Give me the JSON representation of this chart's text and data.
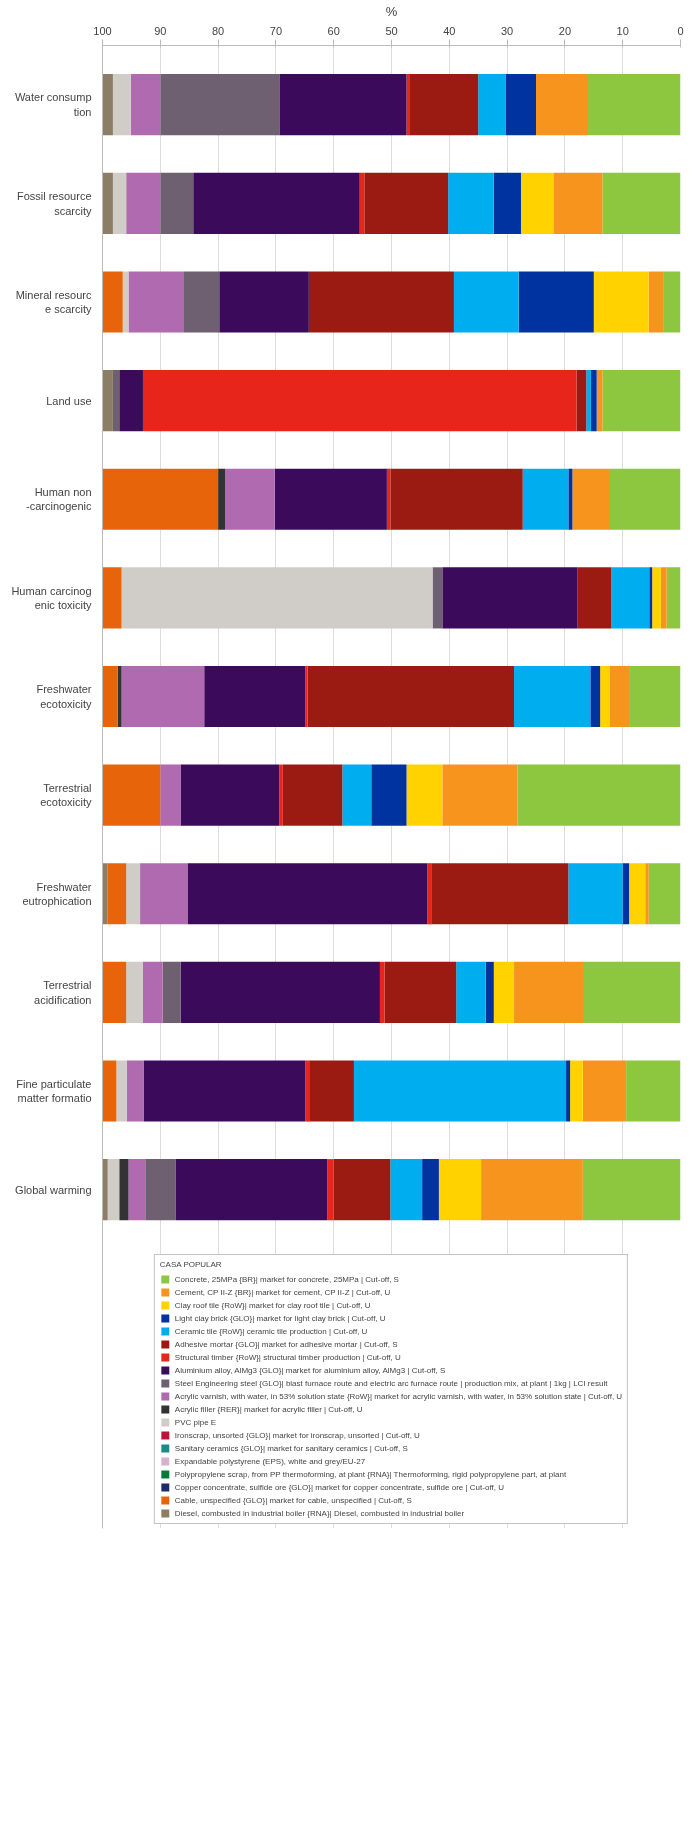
{
  "chart_data": {
    "type": "bar",
    "orientation": "horizontal",
    "stacked": true,
    "categories": [
      "Water consump\ntion",
      "Fossil resource\nscarcity",
      "Mineral resourc\ne scarcity",
      "Land use",
      "Human non\n-carcinogenic",
      "Human carcinog\nenic toxicity",
      "Freshwater\necotoxicity",
      "Terrestrial\necotoxicity",
      "Freshwater\neutrophication",
      "Terrestrial\nacidification",
      "Fine particulate\nmatter formatio",
      "Global warming"
    ],
    "xlabel": "%",
    "xlim": [
      100,
      0
    ],
    "xticks": [
      100,
      90,
      80,
      70,
      60,
      50,
      40,
      30,
      20,
      10,
      0
    ],
    "grid": "x",
    "legend": "bottom",
    "legend_title": "CASA POPULAR",
    "series": [
      {
        "name": "Concrete, 25MPa {BR}| market for concrete, 25MPa | Cut-off, S",
        "color": "#8dc63f",
        "values": [
          16,
          13.5,
          3,
          13.5,
          12.2,
          2.4,
          8.9,
          28.2,
          5.5,
          16.7,
          9.4,
          16.9
        ]
      },
      {
        "name": "Cement, CP II-Z {BR}| market for cement, CP II-Z | Cut-off, U",
        "color": "#f7941d",
        "values": [
          9,
          8.5,
          2.5,
          1,
          6.5,
          1,
          3.3,
          13,
          0.6,
          12.1,
          7.5,
          17.6
        ]
      },
      {
        "name": "Clay roof tile {RoW}| market for clay roof tile | Cut-off, U",
        "color": "#ffd200",
        "values": [
          null,
          5.6,
          9.5,
          null,
          null,
          1.5,
          1.7,
          6.2,
          2.8,
          3.5,
          2.2,
          7.3
        ]
      },
      {
        "name": "Light clay brick {GLO}| market for light clay brick | Cut-off, U",
        "color": "#0033a0",
        "values": [
          5.2,
          4.7,
          13,
          1,
          0.7,
          0.5,
          1.7,
          6.1,
          1.1,
          1.4,
          0.7,
          2.9
        ]
      },
      {
        "name": "Ceramic tile {RoW}| ceramic tile production | Cut-off, U",
        "color": "#00aeef",
        "values": [
          4.8,
          7.9,
          11.2,
          0.8,
          7.9,
          6.6,
          13.2,
          5,
          9.4,
          5.1,
          36.7,
          5.5
        ]
      },
      {
        "name": "Adhesive mortar {GLO}| market for adhesive mortar | Cut-off, S",
        "color": "#9b1b12",
        "values": [
          11.8,
          14.5,
          25.1,
          1.7,
          22.9,
          5.8,
          35.7,
          10.3,
          23.6,
          12.4,
          7.6,
          9.8
        ]
      },
      {
        "name": "Structural timber {RoW}| structural timber production | Cut-off, U",
        "color": "#e8251b",
        "values": [
          0.6,
          0.8,
          null,
          75,
          0.6,
          null,
          0.4,
          0.6,
          0.8,
          0.8,
          0.8,
          1.1
        ]
      },
      {
        "name": "Aluminium alloy, AlMg3 {GLO}| market for aluminium alloy, AlMg3 | Cut-off, S",
        "color": "#3c0a5a",
        "values": [
          22,
          28.8,
          15.5,
          4.1,
          19.4,
          23.4,
          17.5,
          17.1,
          41.5,
          34.5,
          28,
          26.2
        ]
      },
      {
        "name": "Steel Engineering steel {GLO}| blast furnace route and electric arc furnace route | production mix, at plant | 1kg | LCI result",
        "color": "#6e6070",
        "values": [
          20.6,
          5.7,
          6.1,
          1.1,
          null,
          1.7,
          null,
          null,
          null,
          3.1,
          null,
          5.3
        ]
      },
      {
        "name": "Acrylic varnish, with water, in 53% solution state {RoW}| market for acrylic varnish, with water, in 53% solution state | Cut-off, U",
        "color": "#b06ab0",
        "values": [
          5.1,
          5.9,
          9.6,
          null,
          8.6,
          null,
          14.3,
          3.5,
          8.2,
          3.4,
          2.9,
          2.9
        ]
      },
      {
        "name": "Acrylic filler {RER}| market for acrylic filler | Cut-off, U",
        "color": "#333333",
        "values": [
          null,
          null,
          null,
          null,
          1.2,
          null,
          0.7,
          null,
          null,
          null,
          null,
          1.6
        ]
      },
      {
        "name": "PVC pipe E",
        "color": "#d0ccc8",
        "values": [
          3.1,
          2.3,
          1,
          null,
          null,
          53.8,
          null,
          null,
          2.4,
          2.9,
          1.8,
          2
        ]
      },
      {
        "name": "Ironscrap, unsorted {GLO}| market for ironscrap, unsorted | Cut-off, U",
        "color": "#c0103a",
        "values": [
          null,
          null,
          null,
          null,
          null,
          null,
          null,
          null,
          null,
          null,
          null,
          null
        ]
      },
      {
        "name": "Sanitary ceramics {GLO}| market for sanitary ceramics | Cut-off, S",
        "color": "#1a8a8a",
        "values": [
          null,
          null,
          null,
          null,
          null,
          null,
          null,
          null,
          null,
          null,
          null,
          null
        ]
      },
      {
        "name": "Expandable polystyrene (EPS), white and grey/EU-27",
        "color": "#d8b0d0",
        "values": [
          null,
          null,
          null,
          null,
          null,
          null,
          null,
          null,
          null,
          null,
          null,
          null
        ]
      },
      {
        "name": "Polypropylene scrap, from PP thermoforming, at plant {RNA}| Thermoforming, rigid polypropylene part, at plant",
        "color": "#0a7a3a",
        "values": [
          null,
          null,
          null,
          null,
          null,
          null,
          null,
          null,
          null,
          null,
          null,
          null
        ]
      },
      {
        "name": "Copper concentrate, sulfide ore {GLO}| market for copper concentrate, sulfide ore | Cut-off, U",
        "color": "#1f2a6b",
        "values": [
          null,
          null,
          null,
          null,
          null,
          null,
          null,
          null,
          null,
          null,
          null,
          null
        ]
      },
      {
        "name": "Cable, unspecified {GLO}| market for cable, unspecified | Cut-off, S",
        "color": "#e8640a",
        "values": [
          null,
          null,
          3.5,
          null,
          20,
          3.3,
          2.6,
          10,
          3.2,
          4.1,
          2.4,
          null
        ]
      },
      {
        "name": "Diesel, combusted in industrial boiler {RNA}| Diesel, combusted in industrial boiler",
        "color": "#8c7e66",
        "values": [
          1.8,
          1.8,
          null,
          1.8,
          null,
          null,
          null,
          null,
          0.9,
          null,
          null,
          0.9
        ]
      }
    ]
  }
}
